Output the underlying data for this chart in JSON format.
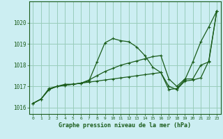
{
  "title": "Graphe pression niveau de la mer (hPa)",
  "bg_color": "#cceef2",
  "grid_color": "#99ccbb",
  "line_color": "#1a5c1a",
  "xlim": [
    -0.5,
    23.5
  ],
  "ylim": [
    1015.7,
    1021.0
  ],
  "yticks": [
    1016,
    1017,
    1018,
    1019,
    1020
  ],
  "xticks": [
    0,
    1,
    2,
    3,
    4,
    5,
    6,
    7,
    8,
    9,
    10,
    11,
    12,
    13,
    14,
    15,
    16,
    17,
    18,
    19,
    20,
    21,
    22,
    23
  ],
  "series1_x": [
    0,
    1,
    2,
    3,
    4,
    5,
    6,
    7,
    8,
    9,
    10,
    11,
    12,
    13,
    14,
    15,
    16,
    17,
    18,
    19,
    20,
    21,
    22,
    23
  ],
  "series1_y": [
    1016.2,
    1016.4,
    1016.9,
    1017.0,
    1017.1,
    1017.1,
    1017.15,
    1017.25,
    1018.15,
    1019.05,
    1019.25,
    1019.15,
    1019.1,
    1018.85,
    1018.45,
    1017.9,
    1017.65,
    1016.85,
    1016.9,
    1017.3,
    1018.15,
    1019.1,
    1019.8,
    1020.55
  ],
  "series2_x": [
    0,
    1,
    2,
    3,
    4,
    5,
    6,
    7,
    8,
    9,
    10,
    11,
    12,
    13,
    14,
    15,
    16,
    17,
    18,
    19,
    20,
    21,
    22,
    23
  ],
  "series2_y": [
    1016.2,
    1016.4,
    1016.85,
    1017.0,
    1017.05,
    1017.1,
    1017.15,
    1017.3,
    1017.5,
    1017.7,
    1017.85,
    1018.0,
    1018.1,
    1018.2,
    1018.3,
    1018.4,
    1018.45,
    1017.35,
    1017.0,
    1017.35,
    1017.35,
    1018.0,
    1018.15,
    1020.55
  ],
  "series3_x": [
    0,
    1,
    2,
    3,
    4,
    5,
    6,
    7,
    8,
    9,
    10,
    11,
    12,
    13,
    14,
    15,
    16,
    17,
    18,
    19,
    20,
    21,
    22,
    23
  ],
  "series3_y": [
    1016.2,
    1016.4,
    1016.85,
    1017.0,
    1017.05,
    1017.1,
    1017.15,
    1017.2,
    1017.25,
    1017.3,
    1017.35,
    1017.4,
    1017.45,
    1017.5,
    1017.55,
    1017.6,
    1017.65,
    1017.0,
    1016.85,
    1017.25,
    1017.3,
    1017.4,
    1018.2,
    1020.55
  ]
}
